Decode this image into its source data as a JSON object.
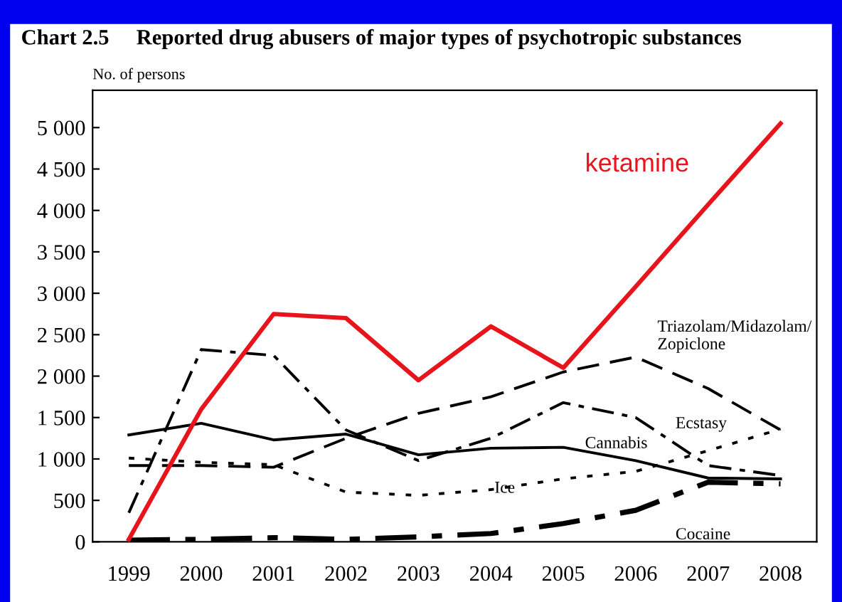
{
  "chart_data": {
    "type": "line",
    "title": "Chart 2.5     Reported drug abusers of major types of psychotropic substances",
    "ylabel": "No. of persons",
    "categories": [
      "1999",
      "2000",
      "2001",
      "2002",
      "2003",
      "2004",
      "2005",
      "2006",
      "2007",
      "2008"
    ],
    "series": [
      {
        "name": "ketamine",
        "color": "#e8141b",
        "line_style": "solid",
        "values": [
          30,
          1600,
          2750,
          2700,
          1950,
          2600,
          2100,
          3080,
          4070,
          5050
        ]
      },
      {
        "name": "Triazolam/Midazolam/\nZopiclone",
        "color": "#000000",
        "line_style": "dashed",
        "values": [
          920,
          920,
          900,
          1250,
          1550,
          1750,
          2050,
          2230,
          1850,
          1350
        ]
      },
      {
        "name": "Ecstasy",
        "color": "#000000",
        "line_style": "dashdot",
        "values": [
          350,
          2320,
          2250,
          1350,
          980,
          1250,
          1680,
          1500,
          920,
          800
        ]
      },
      {
        "name": "Cannabis",
        "color": "#000000",
        "line_style": "solid",
        "values": [
          1290,
          1430,
          1230,
          1300,
          1050,
          1130,
          1140,
          980,
          770,
          760
        ]
      },
      {
        "name": "Ice",
        "color": "#000000",
        "line_style": "dotted",
        "values": [
          1010,
          960,
          930,
          600,
          560,
          630,
          760,
          850,
          1100,
          1360
        ]
      },
      {
        "name": "Cocaine",
        "color": "#000000",
        "line_style": "dashdot",
        "values": [
          20,
          30,
          50,
          30,
          60,
          100,
          220,
          380,
          720,
          700
        ]
      }
    ],
    "ylim": [
      0,
      5450
    ],
    "yticks": [
      {
        "value": 0,
        "label": "0"
      },
      {
        "value": 500,
        "label": "500"
      },
      {
        "value": 1000,
        "label": "1 000"
      },
      {
        "value": 1500,
        "label": "1 500"
      },
      {
        "value": 2000,
        "label": "2 000"
      },
      {
        "value": 2500,
        "label": "2 500"
      },
      {
        "value": 3000,
        "label": "3 000"
      },
      {
        "value": 3500,
        "label": "3 500"
      },
      {
        "value": 4000,
        "label": "4 000"
      },
      {
        "value": 4500,
        "label": "4 500"
      },
      {
        "value": 5000,
        "label": "5 000"
      }
    ],
    "grid": false,
    "legend": false,
    "marker": "none"
  }
}
